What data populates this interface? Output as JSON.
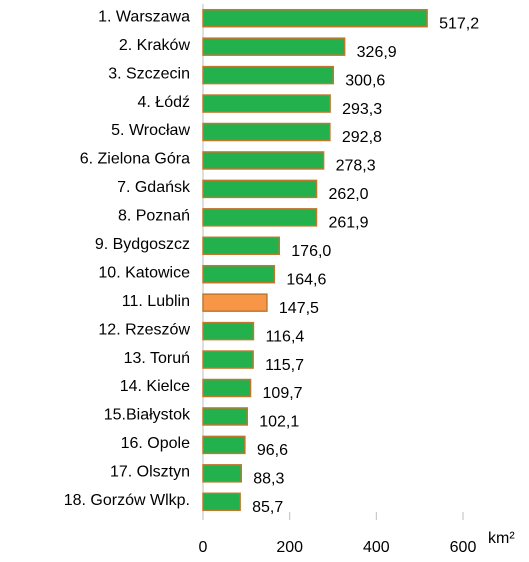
{
  "chart_data": {
    "type": "barh",
    "categories": [
      "1. Warszawa",
      "2. Kraków",
      "3. Szczecin",
      "4. Łódź",
      "5. Wrocław",
      "6. Zielona Góra",
      "7. Gdańsk",
      "8. Poznań",
      "9. Bydgoszcz",
      "10. Katowice",
      "11. Lublin",
      "12. Rzeszów",
      "13. Toruń",
      "14. Kielce",
      "15.Białystok",
      "16. Opole",
      "17. Olsztyn",
      "18. Gorzów Wlkp."
    ],
    "values": [
      517.2,
      326.9,
      300.6,
      293.3,
      292.8,
      278.3,
      262.0,
      261.9,
      176.0,
      164.6,
      147.5,
      116.4,
      115.7,
      109.7,
      102.1,
      96.6,
      88.3,
      85.7
    ],
    "value_labels": [
      "517,2",
      "326,9",
      "300,6",
      "293,3",
      "292,8",
      "278,3",
      "262,0",
      "261,9",
      "176,0",
      "164,6",
      "147,5",
      "116,4",
      "115,7",
      "109,7",
      "102,1",
      "96,6",
      "88,3",
      "85,7"
    ],
    "colors": [
      "#22b14c",
      "#22b14c",
      "#22b14c",
      "#22b14c",
      "#22b14c",
      "#22b14c",
      "#22b14c",
      "#22b14c",
      "#22b14c",
      "#22b14c",
      "#f79646",
      "#22b14c",
      "#22b14c",
      "#22b14c",
      "#22b14c",
      "#22b14c",
      "#22b14c",
      "#22b14c"
    ],
    "edge_color": "#c0782e",
    "xlabel": "km²",
    "xlim": [
      0,
      600
    ],
    "xticks": [
      0,
      200,
      400,
      600
    ]
  }
}
